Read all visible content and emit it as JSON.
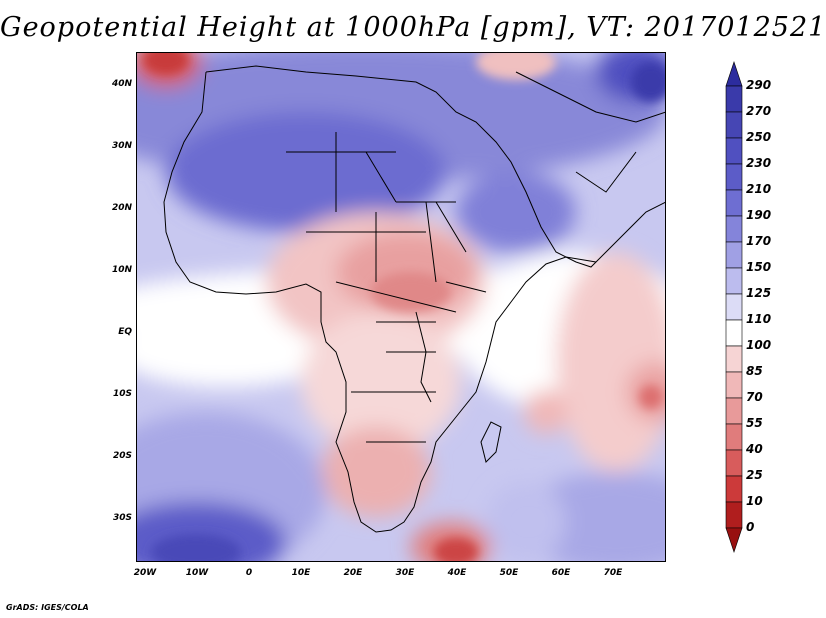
{
  "title": "Geopotential Height at 1000hPa [gpm], VT: 2017012521",
  "footer": "GrADS: IGES/COLA",
  "lat_labels": [
    "40N",
    "30N",
    "20N",
    "10N",
    "EQ",
    "10S",
    "20S",
    "30S"
  ],
  "lon_labels": [
    "20W",
    "10W",
    "0",
    "10E",
    "20E",
    "30E",
    "40E",
    "50E",
    "60E",
    "70E"
  ],
  "colorbar": {
    "levels": [
      "290",
      "270",
      "250",
      "230",
      "210",
      "190",
      "170",
      "150",
      "125",
      "110",
      "100",
      "85",
      "70",
      "55",
      "40",
      "25",
      "10",
      "0"
    ],
    "colors": [
      "#2c2c9e",
      "#3a3aaa",
      "#4646b4",
      "#5050c0",
      "#5c5cc8",
      "#6e6ed2",
      "#8484da",
      "#a0a0e4",
      "#bcbcee",
      "#dcdcf6",
      "#ffffff",
      "#f6d4d4",
      "#f0b8b8",
      "#e89a9a",
      "#e07c7c",
      "#d85c5c",
      "#cc3a3a",
      "#b01e1e",
      "#981010"
    ]
  },
  "map": {
    "region": "Africa and surrounding oceans",
    "lon_range": [
      -22,
      80
    ],
    "lat_range": [
      -36,
      45
    ],
    "field": "1000hPa geopotential height"
  }
}
